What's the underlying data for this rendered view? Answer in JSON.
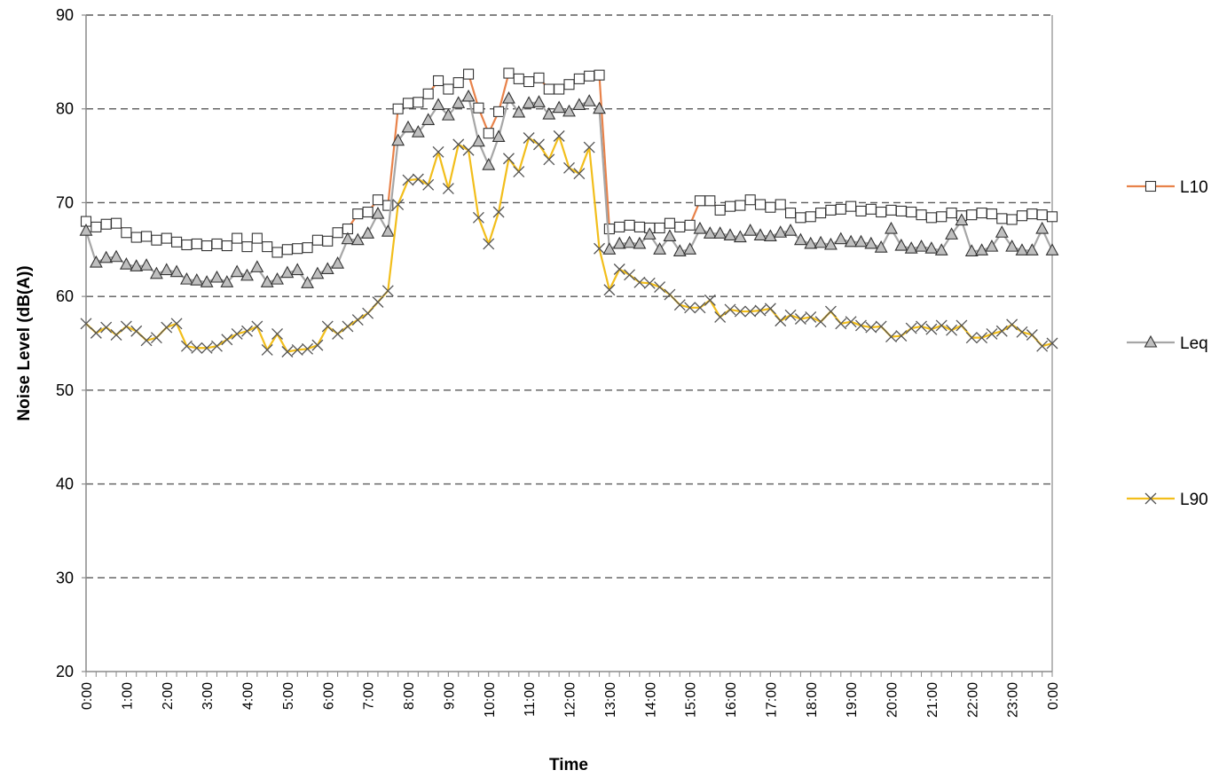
{
  "chart_data": {
    "type": "line",
    "title": "",
    "xlabel": "Time",
    "ylabel": "Noise Level (dB(A))",
    "ylim": [
      20,
      90
    ],
    "yticks": [
      20,
      30,
      40,
      50,
      60,
      70,
      80,
      90
    ],
    "grid": "horizontal dashed",
    "legend_position": "right",
    "x_tick_labels": [
      "0:00",
      "1:00",
      "2:00",
      "3:00",
      "4:00",
      "5:00",
      "6:00",
      "7:00",
      "8:00",
      "9:00",
      "10:00",
      "11:00",
      "12:00",
      "13:00",
      "14:00",
      "15:00",
      "16:00",
      "17:00",
      "18:00",
      "19:00",
      "20:00",
      "21:00",
      "22:00",
      "23:00",
      "0:00"
    ],
    "x_hours": [
      0,
      0.25,
      0.5,
      0.75,
      1,
      1.25,
      1.5,
      1.75,
      2,
      2.25,
      2.5,
      2.75,
      3,
      3.25,
      3.5,
      3.75,
      4,
      4.25,
      4.5,
      4.75,
      5,
      5.25,
      5.5,
      5.75,
      6,
      6.25,
      6.5,
      6.75,
      7,
      7.25,
      7.5,
      7.75,
      8,
      8.25,
      8.5,
      8.75,
      9,
      9.25,
      9.5,
      9.75,
      10,
      10.25,
      10.5,
      10.75,
      11,
      11.25,
      11.5,
      11.75,
      12,
      12.25,
      12.5,
      12.75,
      13,
      13.25,
      13.5,
      13.75,
      14,
      14.25,
      14.5,
      14.75,
      15,
      15.25,
      15.5,
      15.75,
      16,
      16.25,
      16.5,
      16.75,
      17,
      17.25,
      17.5,
      17.75,
      18,
      18.25,
      18.5,
      18.75,
      19,
      19.25,
      19.5,
      19.75,
      20,
      20.25,
      20.5,
      20.75,
      21,
      21.25,
      21.5,
      21.75,
      22,
      22.25,
      22.5,
      22.75,
      23,
      23.25,
      23.5,
      23.75,
      24
    ],
    "series": [
      {
        "name": "L10",
        "color": "#E8824A",
        "marker": "square",
        "values": [
          68,
          67.4,
          67.7,
          67.8,
          66.8,
          66.3,
          66.4,
          66,
          66.2,
          65.8,
          65.5,
          65.6,
          65.4,
          65.6,
          65.4,
          66.2,
          65.3,
          66.2,
          65.3,
          64.7,
          65,
          65.1,
          65.2,
          66,
          65.9,
          66.8,
          67.2,
          68.8,
          69,
          70.3,
          69.7,
          80,
          80.6,
          80.7,
          81.6,
          83,
          82.1,
          82.8,
          83.7,
          80.1,
          77.4,
          79.7,
          83.8,
          83.2,
          82.9,
          83.3,
          82.1,
          82.1,
          82.6,
          83.2,
          83.5,
          83.6,
          67.2,
          67.4,
          67.6,
          67.4,
          67.3,
          67.3,
          67.8,
          67.4,
          67.6,
          70.2,
          70.2,
          69.2,
          69.6,
          69.7,
          70.3,
          69.8,
          69.5,
          69.8,
          68.9,
          68.4,
          68.5,
          68.9,
          69.2,
          69.3,
          69.6,
          69.1,
          69.3,
          69,
          69.2,
          69.1,
          69,
          68.7,
          68.4,
          68.5,
          68.9,
          68.6,
          68.7,
          68.9,
          68.8,
          68.3,
          68.2,
          68.6,
          68.8,
          68.7,
          68.5
        ]
      },
      {
        "name": "Leq",
        "color": "#A6A6A6",
        "marker": "triangle",
        "values": [
          67,
          63.6,
          64.1,
          64.2,
          63.4,
          63.2,
          63.3,
          62.4,
          62.8,
          62.6,
          61.8,
          61.7,
          61.5,
          62,
          61.5,
          62.6,
          62.2,
          63.1,
          61.5,
          61.8,
          62.5,
          62.8,
          61.4,
          62.4,
          62.9,
          63.5,
          66.1,
          66,
          66.7,
          68.8,
          66.9,
          76.6,
          78,
          77.5,
          78.8,
          80.4,
          79.3,
          80.6,
          81.3,
          76.5,
          74,
          77,
          81.1,
          79.6,
          80.6,
          80.7,
          79.4,
          80.1,
          79.7,
          80.4,
          80.8,
          80,
          65,
          65.6,
          65.7,
          65.6,
          66.6,
          65,
          66.4,
          64.8,
          65,
          67.2,
          66.7,
          66.7,
          66.5,
          66.3,
          67,
          66.5,
          66.4,
          66.8,
          67,
          66,
          65.6,
          65.7,
          65.5,
          66.1,
          65.8,
          65.8,
          65.6,
          65.2,
          67.2,
          65.4,
          65.1,
          65.3,
          65.1,
          64.9,
          66.6,
          68.1,
          64.8,
          64.9,
          65.3,
          66.8,
          65.3,
          64.9,
          64.9,
          67.2,
          64.9
        ]
      },
      {
        "name": "L90",
        "color": "#F2BE1B",
        "marker": "x",
        "values": [
          57.1,
          56.1,
          56.7,
          55.9,
          56.8,
          56.3,
          55.3,
          55.6,
          56.7,
          57.1,
          54.7,
          54.5,
          54.5,
          54.7,
          55.4,
          56,
          56.3,
          56.8,
          54.3,
          56,
          54.1,
          54.3,
          54.4,
          54.8,
          56.8,
          56,
          56.8,
          57.5,
          58.2,
          59.4,
          60.6,
          69.8,
          72.4,
          72.5,
          71.9,
          75.4,
          71.5,
          76.2,
          75.6,
          68.4,
          65.6,
          69,
          74.7,
          73.3,
          76.9,
          76.2,
          74.6,
          77.1,
          73.7,
          73.1,
          75.9,
          65.1,
          60.7,
          62.9,
          62.3,
          61.5,
          61.4,
          61,
          60.2,
          59.1,
          58.8,
          58.8,
          59.6,
          57.8,
          58.6,
          58.4,
          58.4,
          58.5,
          58.7,
          57.4,
          58,
          57.6,
          57.8,
          57.3,
          58.4,
          57.1,
          57.3,
          56.9,
          56.7,
          56.8,
          55.7,
          55.8,
          56.6,
          56.8,
          56.5,
          56.9,
          56.4,
          56.9,
          55.6,
          55.6,
          56,
          56.3,
          57,
          56.2,
          55.9,
          54.7,
          55
        ]
      }
    ]
  }
}
